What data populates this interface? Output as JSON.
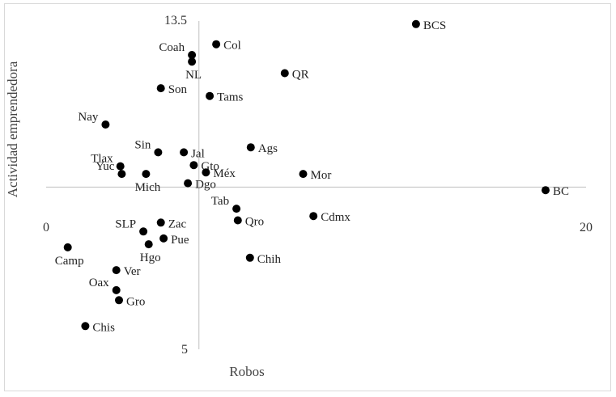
{
  "chart_data": {
    "type": "scatter",
    "title": "",
    "xlabel": "Robos",
    "ylabel": "Actividad emprendedora",
    "xlim": [
      0,
      20
    ],
    "ylim": [
      5,
      13.5
    ],
    "x_cross": 5.66,
    "y_cross": 9.2,
    "grid": false,
    "legend": "none",
    "colors": {
      "marker": "#000000",
      "axis": "#bfbfbf",
      "frame": "#d9d9d9"
    },
    "tick_labels": {
      "x_min": "0",
      "x_max": "20",
      "y_max": "13.5",
      "y_min": "5"
    },
    "points": [
      {
        "label": "BCS",
        "x": 13.7,
        "y": 13.42,
        "label_pos": "right"
      },
      {
        "label": "Col",
        "x": 6.3,
        "y": 12.9,
        "label_pos": "right"
      },
      {
        "label": "Coah",
        "x": 5.4,
        "y": 12.62,
        "label_pos": "left"
      },
      {
        "label": "NL",
        "x": 5.4,
        "y": 12.45,
        "label_pos": "below"
      },
      {
        "label": "QR",
        "x": 8.84,
        "y": 12.15,
        "label_pos": "right"
      },
      {
        "label": "Son",
        "x": 4.25,
        "y": 11.76,
        "label_pos": "right"
      },
      {
        "label": "Tams",
        "x": 6.06,
        "y": 11.56,
        "label_pos": "right"
      },
      {
        "label": "Nay",
        "x": 2.2,
        "y": 10.82,
        "label_pos": "left"
      },
      {
        "label": "Sin",
        "x": 4.15,
        "y": 10.1,
        "label_pos": "left"
      },
      {
        "label": "Jal",
        "x": 5.1,
        "y": 10.1,
        "label_pos": "right"
      },
      {
        "label": "Ags",
        "x": 7.58,
        "y": 10.23,
        "label_pos": "right"
      },
      {
        "label": "Gto",
        "x": 5.47,
        "y": 9.77,
        "label_pos": "right"
      },
      {
        "label": "Tlax",
        "x": 2.75,
        "y": 9.74,
        "label_pos": "left"
      },
      {
        "label": "Yuc",
        "x": 2.8,
        "y": 9.54,
        "label_pos": "left"
      },
      {
        "label": "Mich",
        "x": 3.7,
        "y": 9.54,
        "label_pos": "below"
      },
      {
        "label": "Méx",
        "x": 5.92,
        "y": 9.58,
        "label_pos": "right"
      },
      {
        "label": "Mor",
        "x": 9.52,
        "y": 9.54,
        "label_pos": "right"
      },
      {
        "label": "Dgo",
        "x": 5.25,
        "y": 9.3,
        "label_pos": "right"
      },
      {
        "label": "BC",
        "x": 18.5,
        "y": 9.12,
        "label_pos": "right"
      },
      {
        "label": "Tab",
        "x": 7.05,
        "y": 8.64,
        "label_pos": "left"
      },
      {
        "label": "Cdmx",
        "x": 9.9,
        "y": 8.45,
        "label_pos": "right"
      },
      {
        "label": "Qro",
        "x": 7.1,
        "y": 8.34,
        "label_pos": "right"
      },
      {
        "label": "Zac",
        "x": 4.25,
        "y": 8.28,
        "label_pos": "right"
      },
      {
        "label": "SLP",
        "x": 3.6,
        "y": 8.05,
        "label_pos": "left"
      },
      {
        "label": "Pue",
        "x": 4.35,
        "y": 7.87,
        "label_pos": "right"
      },
      {
        "label": "Hgo",
        "x": 3.8,
        "y": 7.72,
        "label_pos": "below"
      },
      {
        "label": "Camp",
        "x": 0.8,
        "y": 7.64,
        "label_pos": "below"
      },
      {
        "label": "Chih",
        "x": 7.55,
        "y": 7.37,
        "label_pos": "right"
      },
      {
        "label": "Ver",
        "x": 2.6,
        "y": 7.05,
        "label_pos": "right"
      },
      {
        "label": "Oax",
        "x": 2.6,
        "y": 6.53,
        "label_pos": "left"
      },
      {
        "label": "Gro",
        "x": 2.7,
        "y": 6.27,
        "label_pos": "right"
      },
      {
        "label": "Chis",
        "x": 1.45,
        "y": 5.6,
        "label_pos": "right"
      }
    ]
  }
}
